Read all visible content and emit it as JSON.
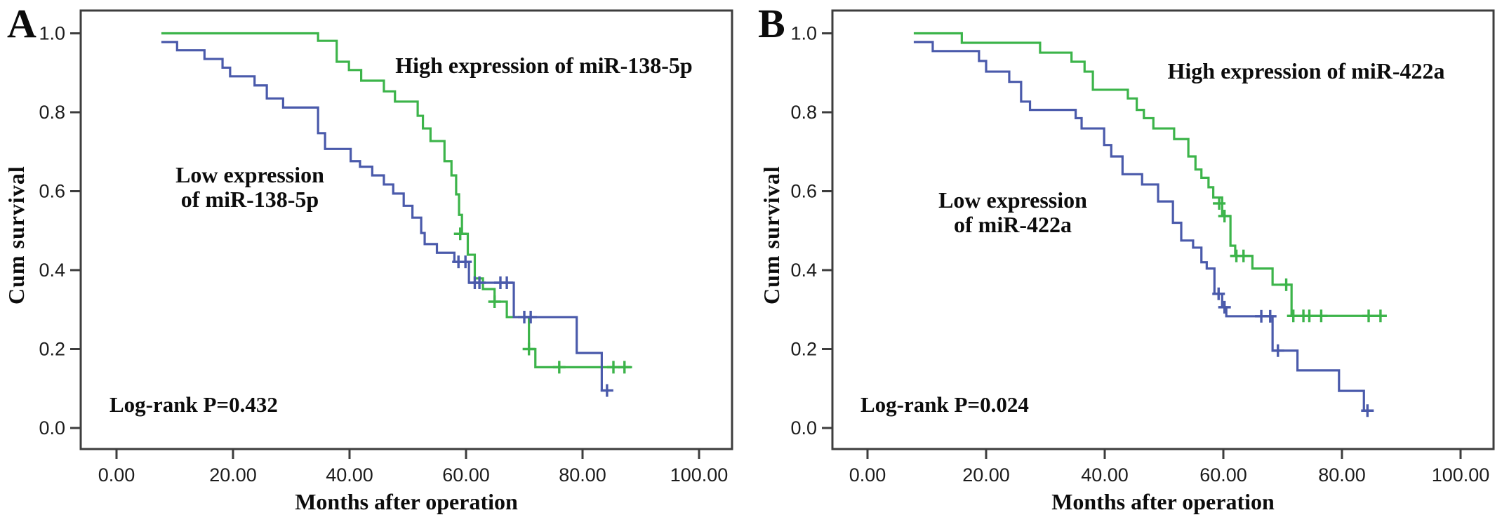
{
  "figure": {
    "panel_a_letter": "A",
    "panel_b_letter": "B"
  },
  "colors": {
    "high_curve": "#3cb44a",
    "low_curve": "#4a5aab",
    "frame": "#3d3d3d",
    "tick_text": "#1c1c1c",
    "annotation_text": "#0c0c0c"
  },
  "panels": [
    {
      "letter": "A",
      "y_axis_label": "Cum survival",
      "x_axis_label": "Months after operation",
      "high_label": "High expression of miR-138-5p",
      "low_label_line1": "Low expression",
      "low_label_line2": "of miR-138-5p",
      "log_rank": "Log-rank P=0.432",
      "x_tick_labels": [
        "0.00",
        "20.00",
        "40.00",
        "60.00",
        "80.00",
        "100.00"
      ],
      "y_tick_labels": [
        "0.0",
        "0.2",
        "0.4",
        "0.6",
        "0.8",
        "1.0"
      ]
    },
    {
      "letter": "B",
      "y_axis_label": "Cum survival",
      "x_axis_label": "Months after operation",
      "high_label": "High expression of miR-422a",
      "low_label_line1": "Low expression",
      "low_label_line2": "of miR-422a",
      "log_rank": "Log-rank P=0.024",
      "x_tick_labels": [
        "0.00",
        "20.00",
        "40.00",
        "60.00",
        "80.00",
        "100.00"
      ],
      "y_tick_labels": [
        "0.0",
        "0.2",
        "0.4",
        "0.6",
        "0.8",
        "1.0"
      ]
    }
  ],
  "chart_data": [
    {
      "type": "line",
      "subtype": "kaplan-meier-step",
      "panel": "A",
      "title": "",
      "annotation": "Log-rank P=0.432",
      "xlabel": "Months after operation",
      "ylabel": "Cum survival",
      "x_ticks": [
        0,
        20,
        40,
        60,
        80,
        100
      ],
      "y_ticks": [
        0,
        0.2,
        0.4,
        0.6,
        0.8,
        1.0
      ],
      "xlim": [
        -7.6,
        105.7
      ],
      "ylim": [
        -0.053,
        1.058
      ],
      "grid": false,
      "legend_position": "in-plot-text",
      "series": [
        {
          "name": "High expression of miR-138-5p",
          "color": "#3cb44a",
          "steps": [
            [
              7.7,
              1.0
            ],
            [
              34.6,
              0.981
            ],
            [
              37.8,
              0.928
            ],
            [
              39.9,
              0.907
            ],
            [
              42,
              0.88
            ],
            [
              45.9,
              0.853
            ],
            [
              47.8,
              0.827
            ],
            [
              51.7,
              0.791
            ],
            [
              52.6,
              0.759
            ],
            [
              53.9,
              0.727
            ],
            [
              56.3,
              0.676
            ],
            [
              57.5,
              0.64
            ],
            [
              58.3,
              0.592
            ],
            [
              58.8,
              0.54
            ],
            [
              59.3,
              0.492
            ],
            [
              60.3,
              0.439
            ],
            [
              61.5,
              0.379
            ],
            [
              62.9,
              0.352
            ],
            [
              64.9,
              0.32
            ],
            [
              67,
              0.281
            ],
            [
              70.8,
              0.2
            ],
            [
              71.9,
              0.154
            ]
          ],
          "end": 88.5,
          "censors": [
            [
              59,
              0.492
            ],
            [
              64.9,
              0.32
            ],
            [
              70.8,
              0.2
            ],
            [
              76,
              0.154
            ],
            [
              85.3,
              0.154
            ],
            [
              87.2,
              0.154
            ]
          ]
        },
        {
          "name": "Low expression of miR-138-5p",
          "color": "#4a5aab",
          "steps": [
            [
              7.7,
              0.978
            ],
            [
              10.4,
              0.957
            ],
            [
              15.1,
              0.935
            ],
            [
              18.2,
              0.913
            ],
            [
              19.5,
              0.891
            ],
            [
              23.7,
              0.868
            ],
            [
              25.8,
              0.835
            ],
            [
              28.6,
              0.812
            ],
            [
              34.6,
              0.747
            ],
            [
              35.8,
              0.707
            ],
            [
              40.2,
              0.676
            ],
            [
              41.8,
              0.662
            ],
            [
              43.9,
              0.64
            ],
            [
              45.9,
              0.617
            ],
            [
              47.5,
              0.594
            ],
            [
              49.3,
              0.563
            ],
            [
              50.8,
              0.533
            ],
            [
              52.3,
              0.494
            ],
            [
              52.9,
              0.466
            ],
            [
              55,
              0.444
            ],
            [
              58,
              0.421
            ],
            [
              60.5,
              0.368
            ],
            [
              68.2,
              0.281
            ],
            [
              79,
              0.19
            ],
            [
              83.3,
              0.095
            ]
          ],
          "end": 84.6,
          "censors": [
            [
              58.7,
              0.421
            ],
            [
              59.9,
              0.421
            ],
            [
              61.5,
              0.368
            ],
            [
              62.3,
              0.368
            ],
            [
              65.9,
              0.368
            ],
            [
              67,
              0.368
            ],
            [
              70,
              0.281
            ],
            [
              71.1,
              0.281
            ],
            [
              84.2,
              0.095
            ]
          ]
        }
      ]
    },
    {
      "type": "line",
      "subtype": "kaplan-meier-step",
      "panel": "B",
      "title": "",
      "annotation": "Log-rank P=0.024",
      "xlabel": "Months after operation",
      "ylabel": "Cum survival",
      "x_ticks": [
        0,
        20,
        40,
        60,
        80,
        100
      ],
      "y_ticks": [
        0,
        0.2,
        0.4,
        0.6,
        0.8,
        1.0
      ],
      "xlim": [
        -7.6,
        105.6
      ],
      "ylim": [
        -0.053,
        1.058
      ],
      "grid": false,
      "legend_position": "in-plot-text",
      "series": [
        {
          "name": "High expression of miR-422a",
          "color": "#3cb44a",
          "steps": [
            [
              7.8,
              1.0
            ],
            [
              15.9,
              0.976
            ],
            [
              29.1,
              0.951
            ],
            [
              34.4,
              0.928
            ],
            [
              36.6,
              0.903
            ],
            [
              38,
              0.857
            ],
            [
              43.9,
              0.835
            ],
            [
              45.4,
              0.806
            ],
            [
              46.6,
              0.785
            ],
            [
              48.2,
              0.759
            ],
            [
              51.7,
              0.732
            ],
            [
              54.1,
              0.688
            ],
            [
              55.3,
              0.655
            ],
            [
              56.3,
              0.634
            ],
            [
              57.5,
              0.61
            ],
            [
              58.3,
              0.584
            ],
            [
              59.8,
              0.537
            ],
            [
              61.2,
              0.462
            ],
            [
              62,
              0.436
            ],
            [
              64.9,
              0.404
            ],
            [
              68.3,
              0.363
            ],
            [
              71.5,
              0.284
            ]
          ],
          "end": 87.5,
          "censors": [
            [
              59.3,
              0.569
            ],
            [
              60.2,
              0.537
            ],
            [
              62.2,
              0.436
            ],
            [
              63.4,
              0.436
            ],
            [
              70.6,
              0.363
            ],
            [
              71.8,
              0.284
            ],
            [
              73.5,
              0.284
            ],
            [
              74.5,
              0.284
            ],
            [
              76.5,
              0.284
            ],
            [
              84.5,
              0.284
            ],
            [
              86.5,
              0.284
            ]
          ]
        },
        {
          "name": "Low expression of miR-422a",
          "color": "#4a5aab",
          "steps": [
            [
              7.8,
              0.978
            ],
            [
              11,
              0.955
            ],
            [
              18.8,
              0.93
            ],
            [
              20,
              0.903
            ],
            [
              23.9,
              0.877
            ],
            [
              25.9,
              0.827
            ],
            [
              27.4,
              0.806
            ],
            [
              35.1,
              0.785
            ],
            [
              36.1,
              0.759
            ],
            [
              39.9,
              0.717
            ],
            [
              41.1,
              0.688
            ],
            [
              43,
              0.643
            ],
            [
              46.3,
              0.617
            ],
            [
              49,
              0.574
            ],
            [
              51.5,
              0.52
            ],
            [
              52.9,
              0.475
            ],
            [
              54.9,
              0.457
            ],
            [
              56.3,
              0.42
            ],
            [
              57.2,
              0.404
            ],
            [
              58.5,
              0.34
            ],
            [
              59.8,
              0.306
            ],
            [
              60.5,
              0.283
            ],
            [
              68.3,
              0.196
            ],
            [
              72.5,
              0.146
            ],
            [
              79.5,
              0.094
            ],
            [
              83.7,
              0.044
            ]
          ],
          "end": 84.8,
          "censors": [
            [
              59.2,
              0.34
            ],
            [
              60.2,
              0.306
            ],
            [
              66.4,
              0.283
            ],
            [
              67.9,
              0.283
            ],
            [
              69.2,
              0.196
            ],
            [
              84.3,
              0.044
            ]
          ]
        }
      ]
    }
  ]
}
